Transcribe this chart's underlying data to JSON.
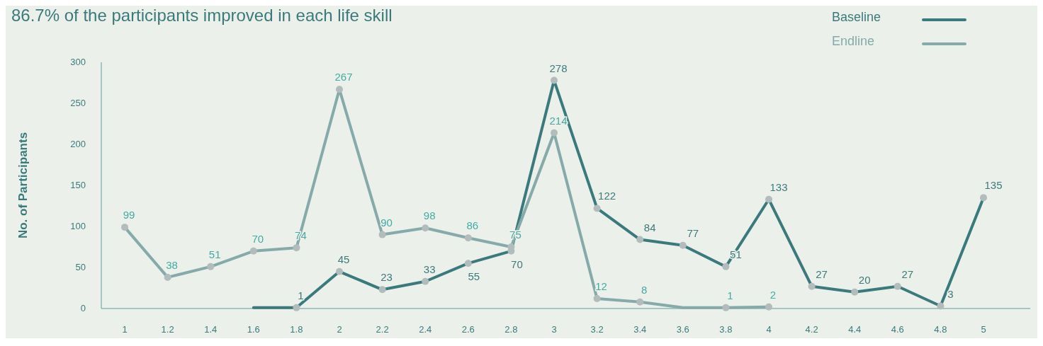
{
  "chart_data": {
    "type": "line",
    "title": "86.7% of the participants improved in each life skill",
    "ylabel": "No. of Participants",
    "categories": [
      "1",
      "1.2",
      "1.4",
      "1.6",
      "1.8",
      "2",
      "2.2",
      "2.4",
      "2.6",
      "2.8",
      "3",
      "3.2",
      "3.4",
      "3.6",
      "3.8",
      "4",
      "4.2",
      "4.4",
      "4.6",
      "4.8",
      "5"
    ],
    "series": [
      {
        "name": "Baseline",
        "color": "#3b7a7c",
        "values": [
          null,
          null,
          null,
          1,
          1,
          45,
          23,
          33,
          55,
          70,
          278,
          122,
          84,
          77,
          51,
          133,
          27,
          20,
          27,
          3,
          135
        ],
        "value_labels": [
          null,
          null,
          null,
          null,
          "1",
          "45",
          "23",
          "33",
          "55",
          "70",
          "278",
          "122",
          "84",
          "77",
          "51",
          "133",
          "27",
          "20",
          "27",
          "3",
          "135"
        ]
      },
      {
        "name": "Endline",
        "color": "#85aaa9",
        "values": [
          99,
          38,
          51,
          70,
          74,
          267,
          90,
          98,
          86,
          75,
          214,
          12,
          8,
          1,
          1,
          2,
          null,
          null,
          null,
          null,
          null
        ],
        "value_labels": [
          "99",
          "38",
          "51",
          "70",
          "74",
          "267",
          "90",
          "98",
          "86",
          "75",
          "214",
          "12",
          "8",
          null,
          "1",
          "2",
          null,
          null,
          null,
          null,
          null
        ]
      }
    ],
    "ylim": [
      0,
      300
    ],
    "yticks": [
      0,
      50,
      100,
      150,
      200,
      250,
      300
    ],
    "grid": false,
    "legend": "top right",
    "marker": "circle",
    "line_style": "solid"
  }
}
